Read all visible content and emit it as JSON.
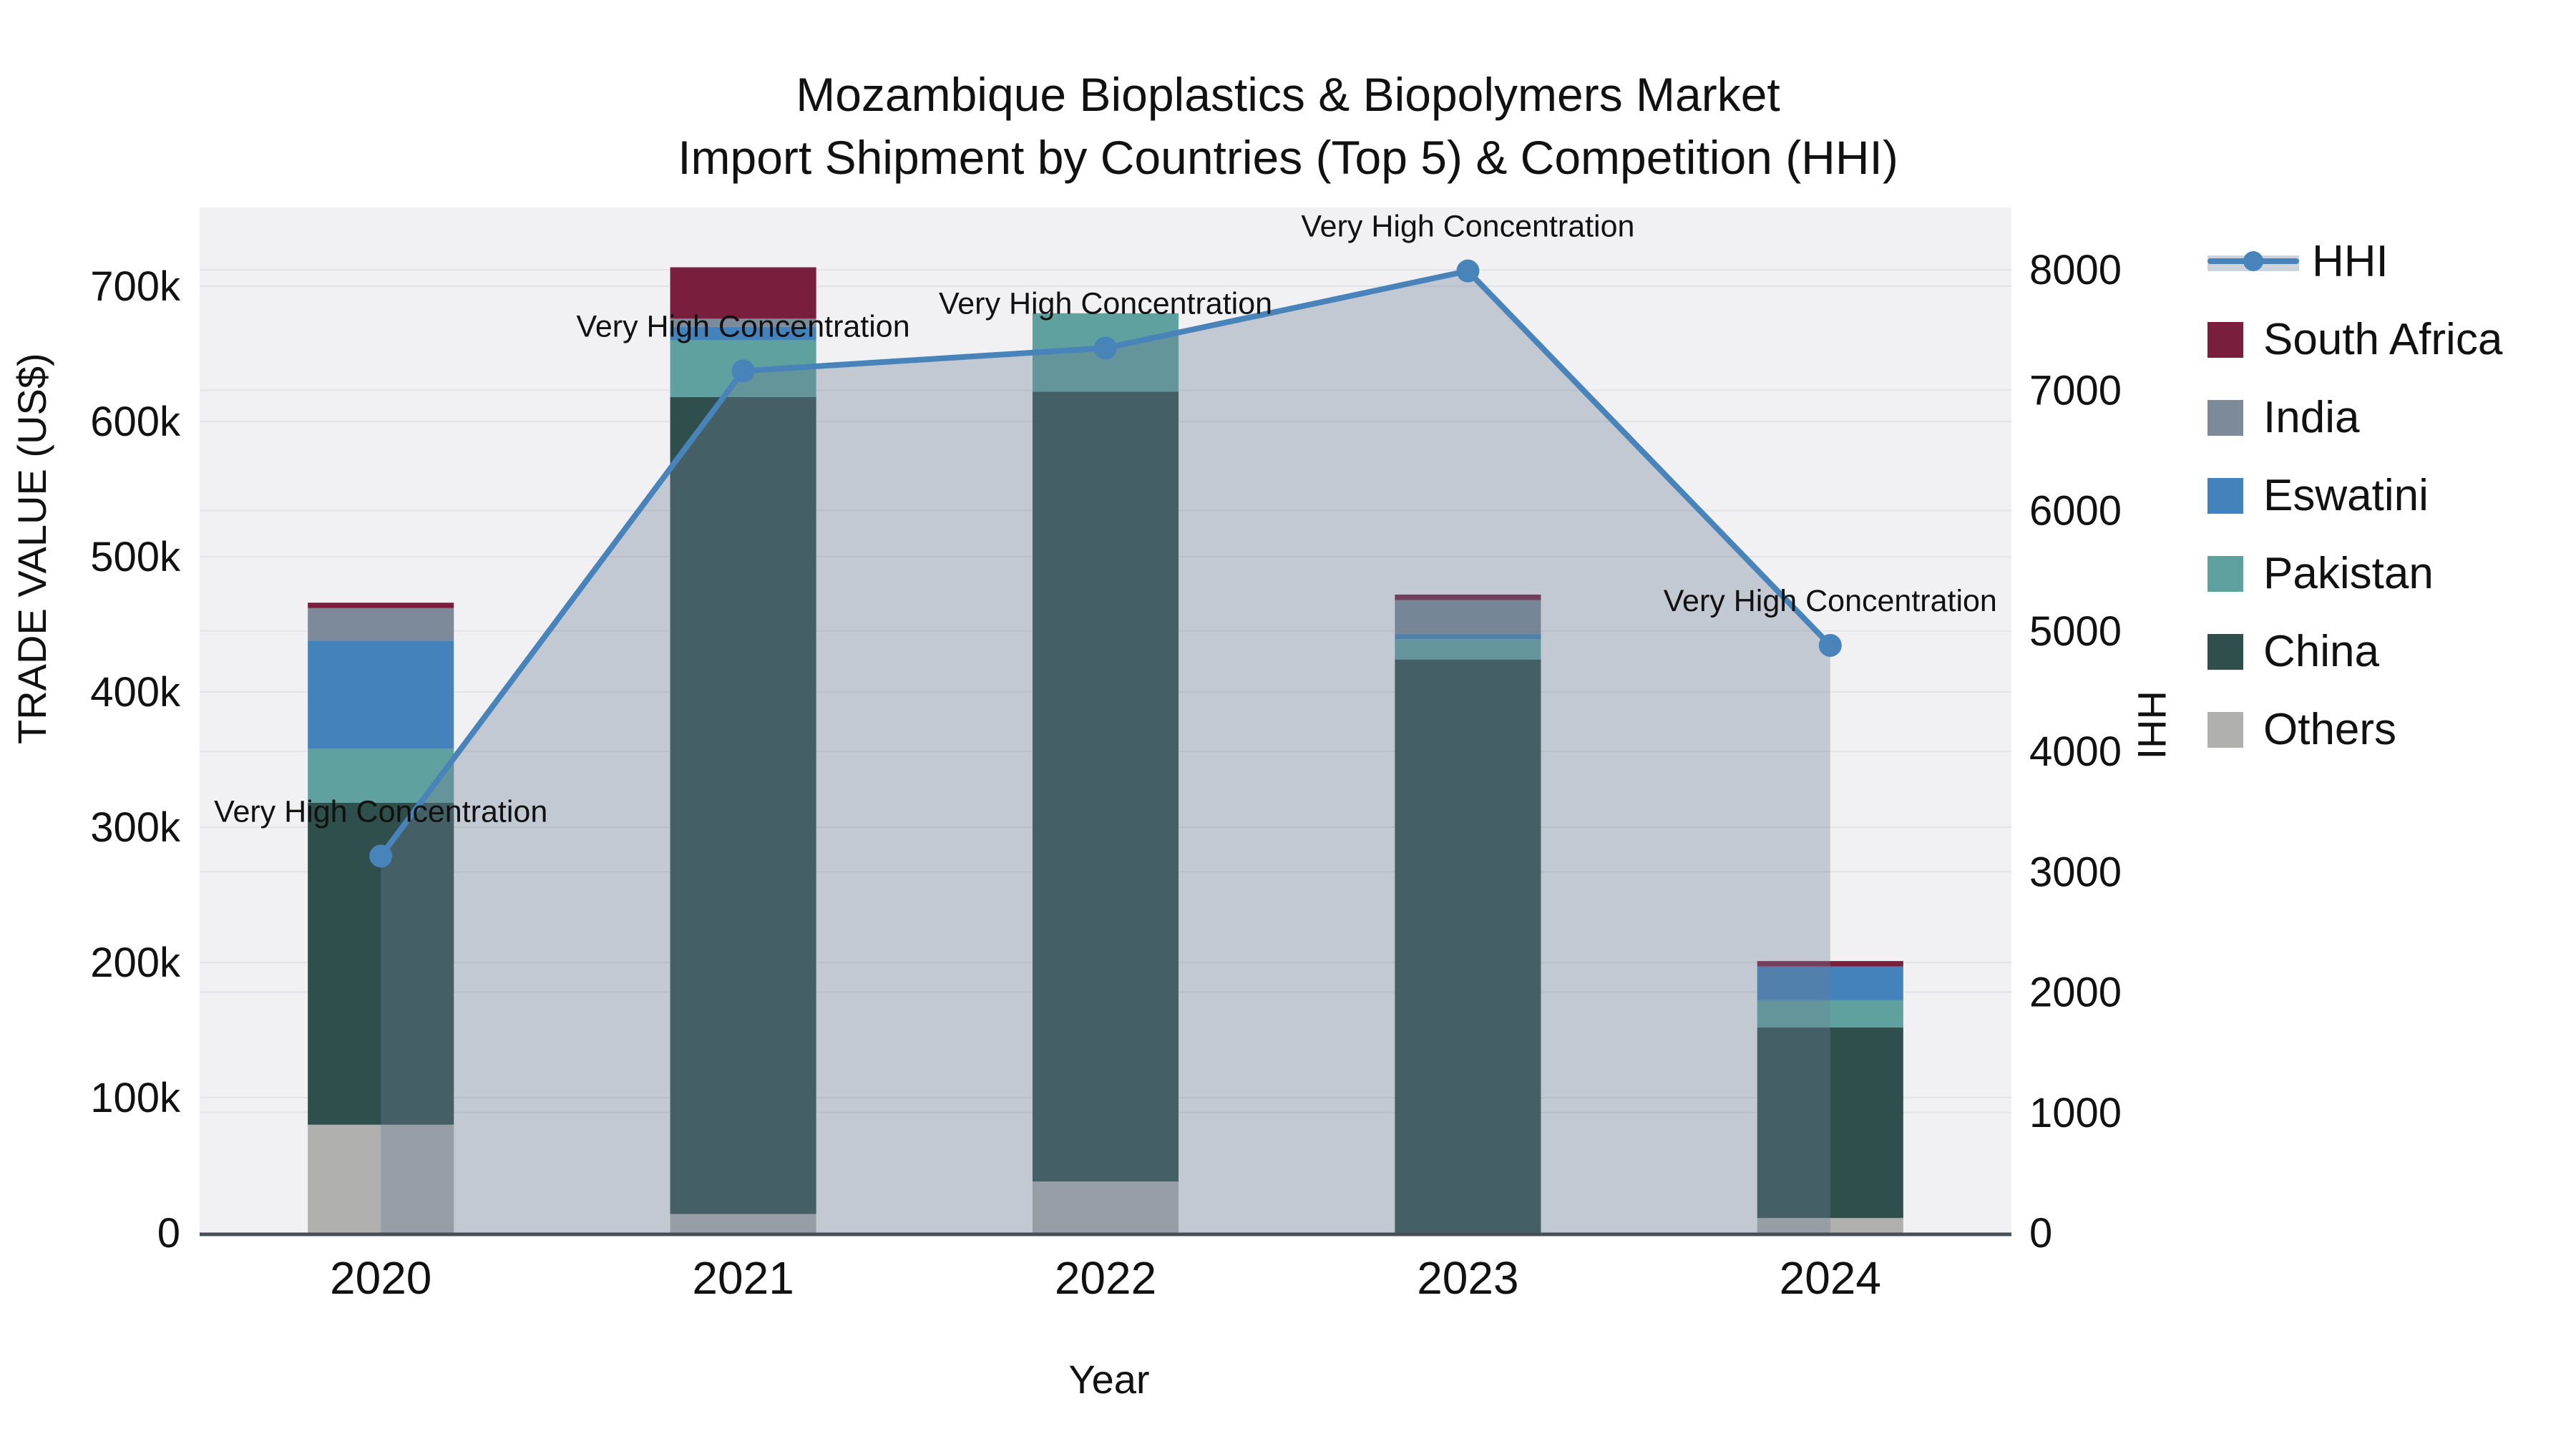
{
  "title": {
    "line1": "Mozambique Bioplastics & Biopolymers Market",
    "line2": "Import Shipment by Countries (Top 5) & Competition (HHI)"
  },
  "chart_data": {
    "type": "bar+line",
    "categories": [
      "2020",
      "2021",
      "2022",
      "2023",
      "2024"
    ],
    "xlabel": "Year",
    "ylabel_left": "TRADE VALUE (US$)",
    "ylabel_right": "HHI",
    "bar_value_unit": "US$",
    "stack_order": "bottom_to_top",
    "series": [
      {
        "name": "Others",
        "color": "#b0b0ae",
        "values": [
          80000,
          14000,
          38000,
          0,
          11000
        ]
      },
      {
        "name": "China",
        "color": "#2e4f4c",
        "values": [
          238000,
          604000,
          584000,
          424000,
          141000
        ]
      },
      {
        "name": "Pakistan",
        "color": "#5fa19e",
        "values": [
          40000,
          42000,
          58000,
          15000,
          20000
        ]
      },
      {
        "name": "Eswatini",
        "color": "#4382ba",
        "values": [
          80000,
          10000,
          0,
          4000,
          25000
        ]
      },
      {
        "name": "India",
        "color": "#7d8a99",
        "values": [
          24000,
          6000,
          0,
          25000,
          0
        ]
      },
      {
        "name": "South Africa",
        "color": "#7a1e3e",
        "values": [
          4000,
          38000,
          0,
          4000,
          4000
        ]
      }
    ],
    "line": {
      "name": "HHI",
      "color": "#4884ba",
      "area_fill": "rgba(110,125,150,0.35)",
      "values": [
        3130,
        7160,
        7350,
        7990,
        4880
      ]
    },
    "annotation_label": "Very High Concentration",
    "axis_left": {
      "min": 0,
      "max": 700000,
      "tick_labels": [
        "0",
        "100k",
        "200k",
        "300k",
        "400k",
        "500k",
        "600k",
        "700k"
      ]
    },
    "axis_right": {
      "min": 0,
      "max": 8000,
      "tick_labels": [
        "0",
        "1000",
        "2000",
        "3000",
        "4000",
        "5000",
        "6000",
        "7000",
        "8000"
      ]
    },
    "grid": true,
    "plot_background": "#f1f1f3",
    "gridline_color": "#e3e4e8",
    "axisline_color": "#474f56",
    "legend_position": "right"
  },
  "legend": {
    "items": [
      "HHI",
      "South Africa",
      "India",
      "Eswatini",
      "Pakistan",
      "China",
      "Others"
    ]
  }
}
